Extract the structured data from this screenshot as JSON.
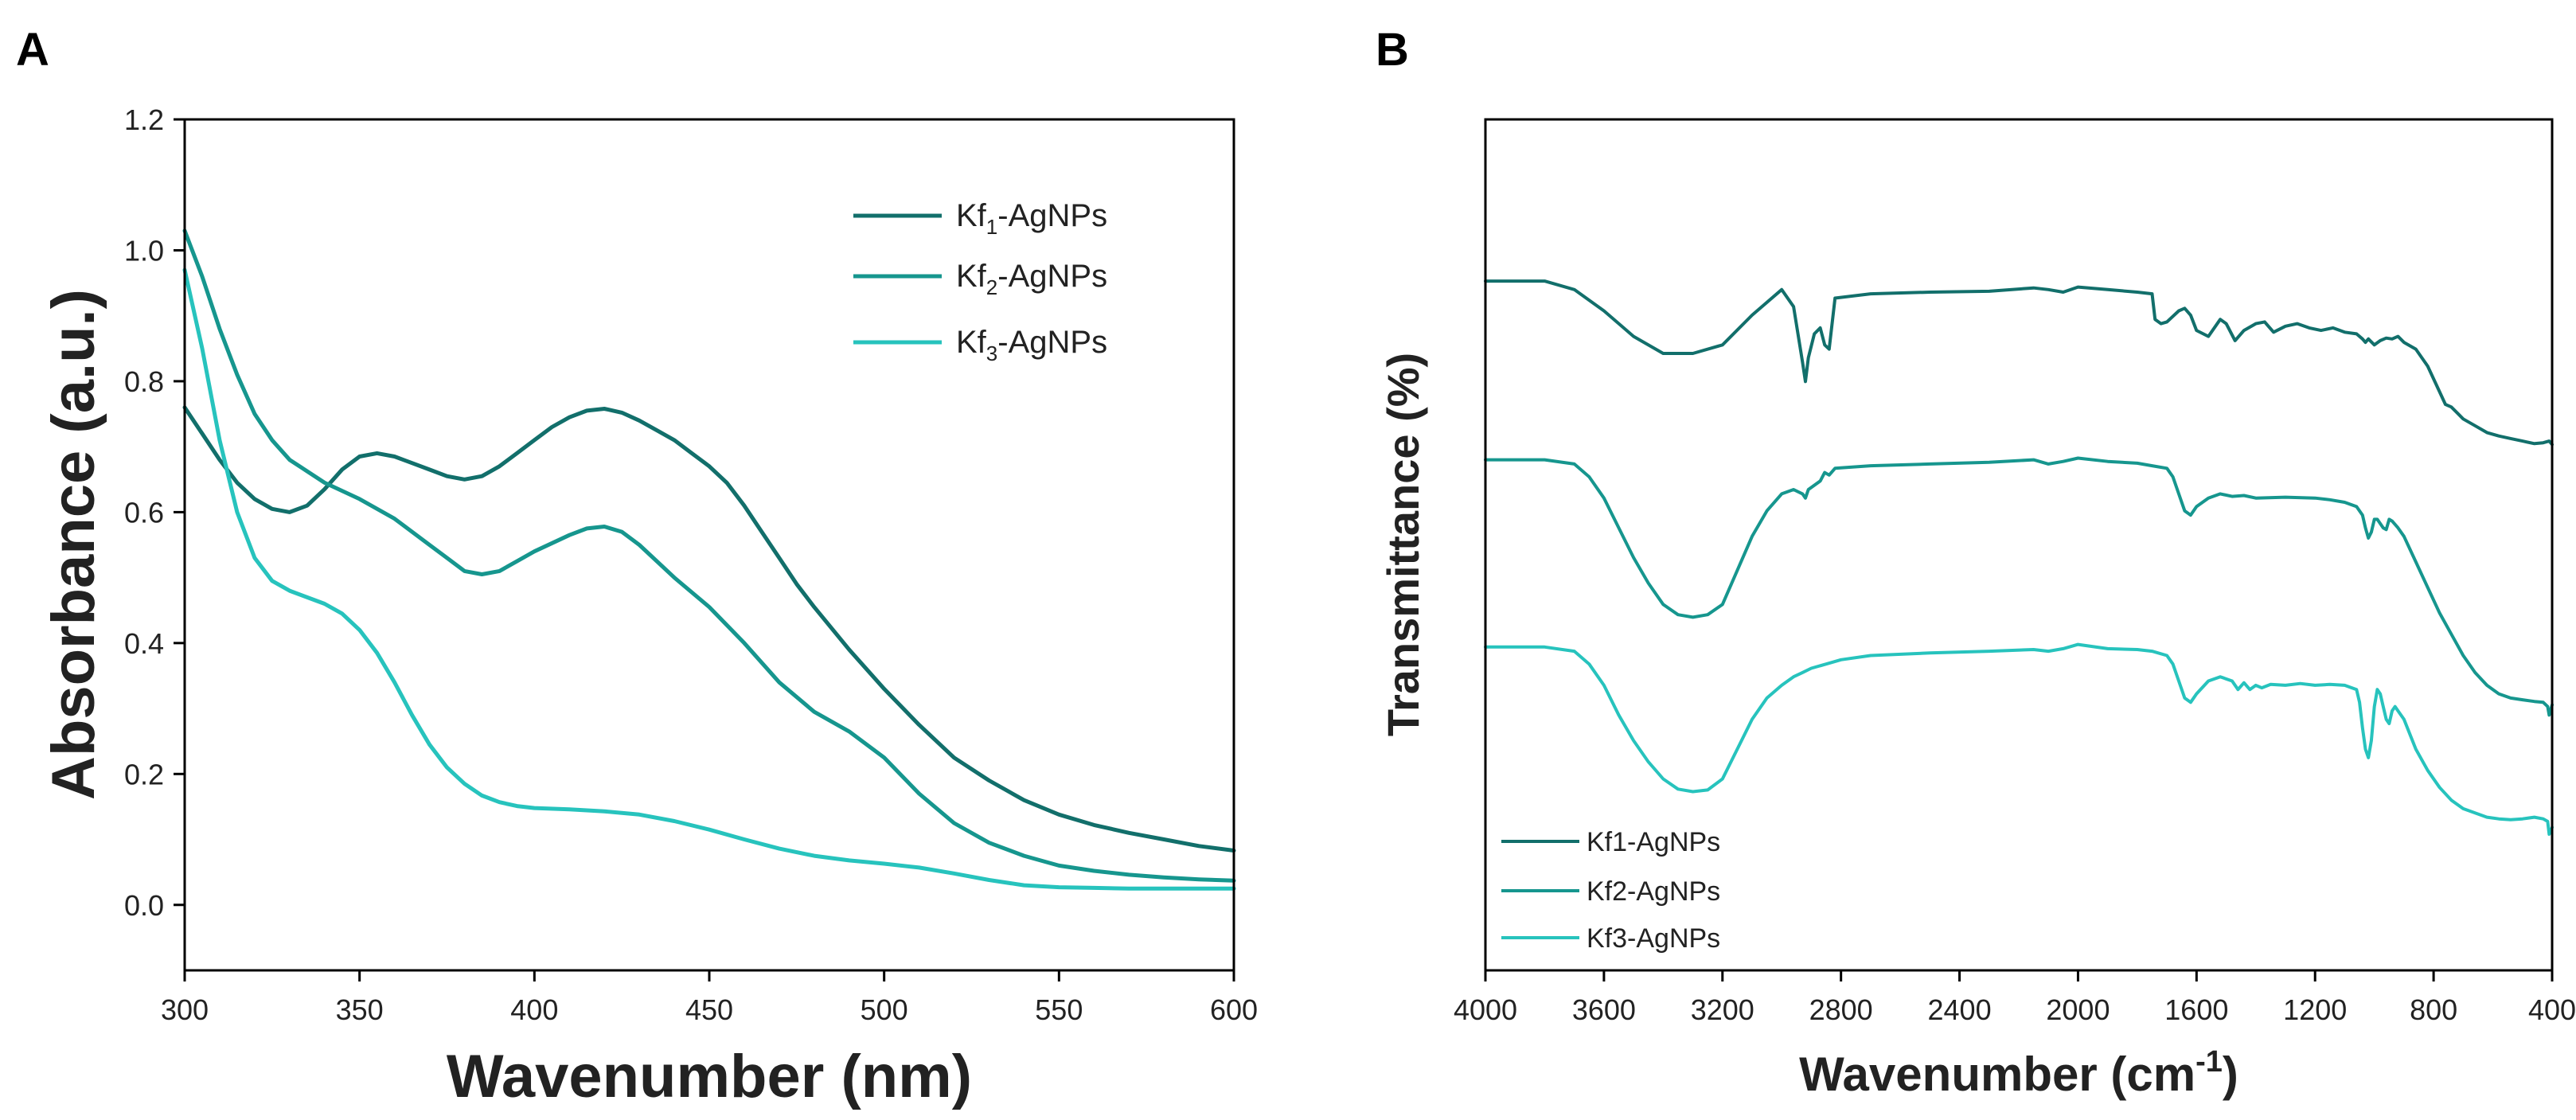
{
  "colors": {
    "kf1": "#126f6b",
    "kf2": "#16968e",
    "kf3": "#27c3bd"
  },
  "panels": {
    "a": {
      "label": "A"
    },
    "b": {
      "label": "B"
    }
  },
  "chart_data": [
    {
      "panel": "A",
      "type": "line",
      "title": "",
      "xlabel": "Wavenumber (nm)",
      "ylabel": "Absorbance (a.u.)",
      "xlim": [
        300,
        600
      ],
      "ylim": [
        -0.1,
        1.2
      ],
      "xticks": [
        300,
        350,
        400,
        450,
        500,
        550,
        600
      ],
      "xtick_labels": [
        "300",
        "350",
        "400",
        "450",
        "500",
        "550",
        "600"
      ],
      "yticks": [
        0.0,
        0.2,
        0.4,
        0.6,
        0.8,
        1.0,
        1.2
      ],
      "ytick_labels": [
        "0.0",
        "0.2",
        "0.4",
        "0.6",
        "0.8",
        "1.0",
        "1.2"
      ],
      "legend_position": "top-right",
      "series": [
        {
          "name": "Kf1-AgNPs",
          "legend": {
            "base": "Kf",
            "sub": "1",
            "suffix": "-AgNPs"
          },
          "x": [
            300,
            305,
            310,
            315,
            320,
            325,
            330,
            335,
            340,
            345,
            350,
            355,
            360,
            365,
            370,
            375,
            380,
            385,
            390,
            395,
            400,
            405,
            410,
            415,
            420,
            425,
            430,
            435,
            440,
            445,
            450,
            455,
            460,
            465,
            470,
            475,
            480,
            490,
            500,
            510,
            520,
            530,
            540,
            550,
            560,
            570,
            580,
            590,
            600
          ],
          "y": [
            0.76,
            0.72,
            0.68,
            0.645,
            0.62,
            0.605,
            0.6,
            0.61,
            0.635,
            0.665,
            0.685,
            0.69,
            0.685,
            0.675,
            0.665,
            0.655,
            0.65,
            0.655,
            0.67,
            0.69,
            0.71,
            0.73,
            0.745,
            0.755,
            0.758,
            0.752,
            0.74,
            0.725,
            0.71,
            0.69,
            0.67,
            0.645,
            0.61,
            0.57,
            0.53,
            0.49,
            0.455,
            0.39,
            0.33,
            0.275,
            0.225,
            0.19,
            0.16,
            0.138,
            0.122,
            0.11,
            0.1,
            0.09,
            0.083
          ]
        },
        {
          "name": "Kf2-AgNPs",
          "legend": {
            "base": "Kf",
            "sub": "2",
            "suffix": "-AgNPs"
          },
          "x": [
            300,
            305,
            310,
            315,
            320,
            325,
            330,
            340,
            350,
            360,
            370,
            375,
            380,
            385,
            390,
            395,
            400,
            410,
            415,
            420,
            425,
            430,
            440,
            450,
            460,
            470,
            480,
            490,
            500,
            510,
            520,
            530,
            540,
            550,
            560,
            570,
            580,
            590,
            600
          ],
          "y": [
            1.03,
            0.96,
            0.88,
            0.81,
            0.75,
            0.71,
            0.68,
            0.645,
            0.62,
            0.59,
            0.55,
            0.53,
            0.51,
            0.505,
            0.51,
            0.525,
            0.54,
            0.565,
            0.575,
            0.578,
            0.57,
            0.55,
            0.5,
            0.455,
            0.4,
            0.34,
            0.295,
            0.265,
            0.225,
            0.17,
            0.125,
            0.095,
            0.075,
            0.06,
            0.052,
            0.046,
            0.042,
            0.039,
            0.037
          ]
        },
        {
          "name": "Kf3-AgNPs",
          "legend": {
            "base": "Kf",
            "sub": "3",
            "suffix": "-AgNPs"
          },
          "x": [
            300,
            305,
            310,
            315,
            320,
            325,
            330,
            340,
            345,
            350,
            355,
            360,
            365,
            370,
            375,
            380,
            385,
            390,
            395,
            400,
            410,
            420,
            430,
            440,
            450,
            460,
            470,
            480,
            490,
            500,
            510,
            520,
            530,
            540,
            550,
            560,
            570,
            580,
            590,
            600
          ],
          "y": [
            0.97,
            0.85,
            0.71,
            0.6,
            0.53,
            0.495,
            0.48,
            0.46,
            0.445,
            0.42,
            0.385,
            0.34,
            0.29,
            0.245,
            0.21,
            0.185,
            0.167,
            0.157,
            0.151,
            0.148,
            0.146,
            0.143,
            0.138,
            0.128,
            0.115,
            0.1,
            0.086,
            0.075,
            0.068,
            0.063,
            0.057,
            0.048,
            0.038,
            0.03,
            0.027,
            0.026,
            0.025,
            0.025,
            0.025,
            0.025
          ]
        }
      ]
    },
    {
      "panel": "B",
      "type": "line",
      "title": "",
      "xlabel": "Wavenumber (cm⁻¹)",
      "xlabel_parts": {
        "base": "Wavenumber (cm",
        "sup": "-1",
        "suffix": ")"
      },
      "ylabel": "Transmittance (%)",
      "xlim": [
        4000,
        400
      ],
      "ylim": [
        0,
        1
      ],
      "x_reversed": true,
      "xticks": [
        4000,
        3600,
        3200,
        2800,
        2400,
        2000,
        1600,
        1200,
        800,
        400
      ],
      "xtick_labels": [
        "4000",
        "3600",
        "3200",
        "2800",
        "2400",
        "2000",
        "1600",
        "1200",
        "800",
        "400"
      ],
      "yticks": [],
      "legend_position": "bottom-left",
      "legend_labels": [
        "Kf1-AgNPs",
        "Kf2-AgNPs",
        "Kf3-AgNPs"
      ],
      "series": [
        {
          "name": "Kf1-AgNPs",
          "x": [
            4000,
            3800,
            3700,
            3600,
            3500,
            3400,
            3300,
            3200,
            3100,
            3000,
            2960,
            2930,
            2920,
            2910,
            2890,
            2870,
            2855,
            2840,
            2820,
            2700,
            2500,
            2300,
            2150,
            2100,
            2050,
            2000,
            1900,
            1800,
            1750,
            1740,
            1720,
            1700,
            1660,
            1640,
            1620,
            1600,
            1560,
            1520,
            1500,
            1470,
            1440,
            1400,
            1370,
            1340,
            1300,
            1260,
            1220,
            1180,
            1140,
            1100,
            1060,
            1040,
            1030,
            1020,
            1000,
            980,
            960,
            940,
            920,
            900,
            860,
            820,
            780,
            760,
            740,
            720,
            700,
            660,
            620,
            580,
            540,
            500,
            460,
            430,
            410,
            400
          ],
          "y": [
            0.81,
            0.81,
            0.8,
            0.775,
            0.745,
            0.725,
            0.725,
            0.735,
            0.77,
            0.8,
            0.78,
            0.715,
            0.692,
            0.72,
            0.748,
            0.755,
            0.735,
            0.73,
            0.79,
            0.795,
            0.797,
            0.798,
            0.802,
            0.8,
            0.797,
            0.803,
            0.8,
            0.797,
            0.795,
            0.765,
            0.76,
            0.762,
            0.775,
            0.778,
            0.77,
            0.752,
            0.745,
            0.765,
            0.76,
            0.74,
            0.752,
            0.76,
            0.762,
            0.75,
            0.757,
            0.76,
            0.755,
            0.752,
            0.755,
            0.75,
            0.748,
            0.742,
            0.738,
            0.742,
            0.735,
            0.74,
            0.743,
            0.742,
            0.745,
            0.738,
            0.73,
            0.71,
            0.68,
            0.665,
            0.662,
            0.655,
            0.648,
            0.64,
            0.632,
            0.628,
            0.625,
            0.622,
            0.619,
            0.62,
            0.622,
            0.618
          ]
        },
        {
          "name": "Kf2-AgNPs",
          "x": [
            4000,
            3800,
            3700,
            3650,
            3600,
            3550,
            3500,
            3450,
            3400,
            3350,
            3300,
            3250,
            3200,
            3150,
            3100,
            3050,
            3000,
            2960,
            2930,
            2920,
            2910,
            2870,
            2855,
            2840,
            2820,
            2700,
            2500,
            2300,
            2150,
            2100,
            2050,
            2000,
            1900,
            1800,
            1750,
            1700,
            1680,
            1660,
            1640,
            1620,
            1600,
            1560,
            1520,
            1480,
            1440,
            1400,
            1300,
            1200,
            1150,
            1100,
            1060,
            1040,
            1030,
            1020,
            1010,
            1000,
            990,
            970,
            960,
            950,
            940,
            920,
            900,
            860,
            820,
            780,
            740,
            700,
            660,
            620,
            580,
            540,
            500,
            460,
            430,
            415,
            410,
            400
          ],
          "y": [
            0.6,
            0.6,
            0.595,
            0.58,
            0.555,
            0.52,
            0.485,
            0.455,
            0.43,
            0.418,
            0.415,
            0.418,
            0.43,
            0.47,
            0.51,
            0.54,
            0.56,
            0.565,
            0.56,
            0.555,
            0.565,
            0.575,
            0.585,
            0.582,
            0.59,
            0.593,
            0.595,
            0.597,
            0.6,
            0.595,
            0.598,
            0.602,
            0.598,
            0.596,
            0.593,
            0.59,
            0.58,
            0.56,
            0.54,
            0.535,
            0.545,
            0.555,
            0.56,
            0.557,
            0.558,
            0.555,
            0.556,
            0.555,
            0.553,
            0.55,
            0.545,
            0.535,
            0.52,
            0.508,
            0.515,
            0.53,
            0.53,
            0.52,
            0.518,
            0.53,
            0.528,
            0.52,
            0.51,
            0.48,
            0.45,
            0.42,
            0.395,
            0.37,
            0.35,
            0.335,
            0.325,
            0.32,
            0.318,
            0.316,
            0.315,
            0.31,
            0.3,
            0.312
          ]
        },
        {
          "name": "Kf3-AgNPs",
          "x": [
            4000,
            3800,
            3700,
            3650,
            3600,
            3550,
            3500,
            3450,
            3400,
            3350,
            3300,
            3250,
            3200,
            3150,
            3100,
            3050,
            3000,
            2960,
            2930,
            2900,
            2850,
            2800,
            2700,
            2500,
            2300,
            2150,
            2100,
            2050,
            2000,
            1900,
            1800,
            1750,
            1700,
            1680,
            1660,
            1640,
            1620,
            1600,
            1560,
            1520,
            1480,
            1460,
            1440,
            1420,
            1400,
            1380,
            1350,
            1300,
            1250,
            1200,
            1150,
            1100,
            1060,
            1050,
            1040,
            1030,
            1020,
            1010,
            1000,
            990,
            980,
            970,
            960,
            950,
            940,
            930,
            920,
            900,
            860,
            820,
            780,
            740,
            700,
            660,
            620,
            580,
            540,
            500,
            460,
            430,
            415,
            410,
            400
          ],
          "y": [
            0.38,
            0.38,
            0.375,
            0.36,
            0.335,
            0.3,
            0.27,
            0.245,
            0.225,
            0.213,
            0.21,
            0.212,
            0.225,
            0.26,
            0.295,
            0.32,
            0.335,
            0.345,
            0.35,
            0.355,
            0.36,
            0.365,
            0.37,
            0.373,
            0.375,
            0.377,
            0.375,
            0.378,
            0.383,
            0.378,
            0.377,
            0.375,
            0.37,
            0.36,
            0.34,
            0.32,
            0.315,
            0.325,
            0.34,
            0.345,
            0.34,
            0.33,
            0.338,
            0.33,
            0.335,
            0.332,
            0.336,
            0.335,
            0.337,
            0.335,
            0.336,
            0.335,
            0.33,
            0.315,
            0.285,
            0.26,
            0.25,
            0.27,
            0.31,
            0.33,
            0.325,
            0.31,
            0.295,
            0.29,
            0.305,
            0.31,
            0.305,
            0.295,
            0.26,
            0.235,
            0.215,
            0.2,
            0.19,
            0.185,
            0.18,
            0.178,
            0.177,
            0.178,
            0.18,
            0.178,
            0.175,
            0.16,
            0.168
          ]
        }
      ]
    }
  ]
}
